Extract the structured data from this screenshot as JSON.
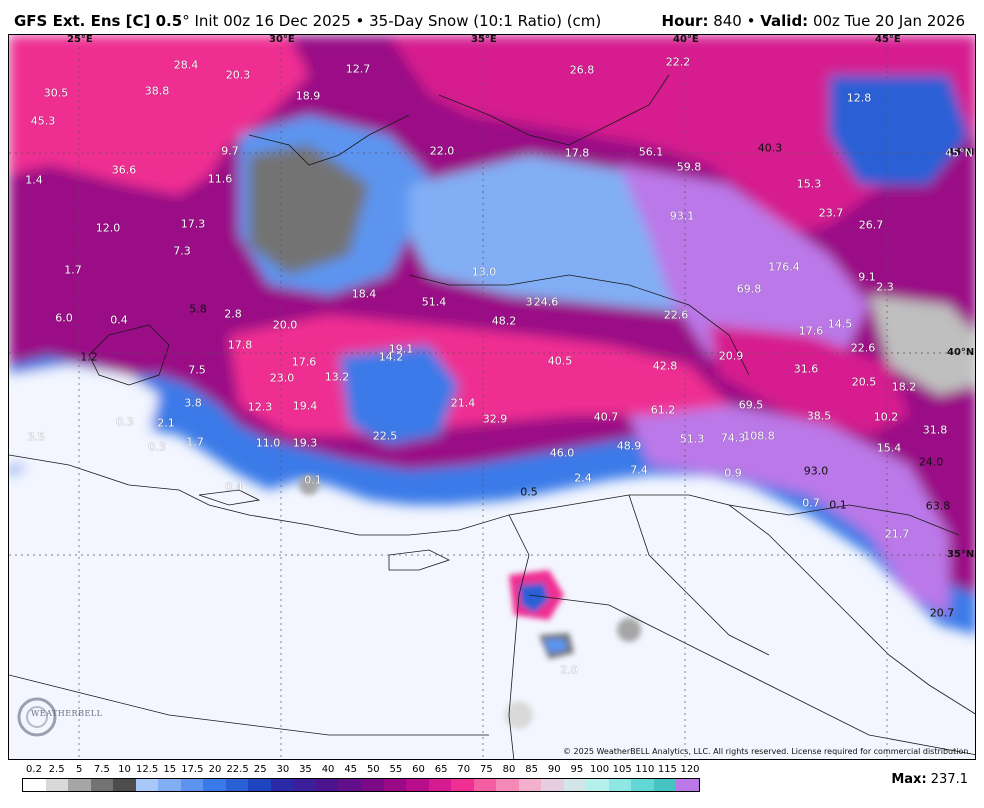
{
  "header": {
    "model": "GFS Ext.  Ens [C] 0.5",
    "degree": "°",
    "description": " Init 00z 16 Dec 2025 • 35-Day Snow (10:1 Ratio) (cm)",
    "hour_label": "Hour:",
    "hour_value": " 840 • ",
    "valid_label": "Valid:",
    "valid_value": " 00z Tue 20 Jan 2026"
  },
  "map": {
    "longitude_labels": [
      "25°E",
      "30°E",
      "35°E",
      "40°E",
      "45°E"
    ],
    "latitude_labels": [
      "45°N",
      "40°N",
      "35°N"
    ],
    "snow_values": [
      "28.4",
      "20.3",
      "38.8",
      "30.5",
      "45.3",
      "12.7",
      "18.9",
      "26.8",
      "22.2",
      "12.8",
      "9.7",
      "11.6",
      "36.6",
      "1.4",
      "22.0",
      "17.8",
      "56.1",
      "59.8",
      "40.3",
      "15.3",
      "45°N",
      "12.0",
      "17.3",
      "7.3",
      "93.1",
      "23.7",
      "26.7",
      "1.7",
      "13.0",
      "176.4",
      "9.1",
      "2.3",
      "6.0",
      "0.4",
      "18.4",
      "51.4",
      "3",
      "24.6",
      "69.8",
      "5.8",
      "2.8",
      "20.0",
      "48.2",
      "22.6",
      "17.6",
      "14.5",
      "17.8",
      "19.1",
      "14.2",
      "22.6",
      "1.2",
      "17.6",
      "23.0",
      "13.2",
      "40.5",
      "42.8",
      "20.9",
      "31.6",
      "20.5",
      "18.2",
      "7.5",
      "3.8",
      "12.3",
      "19.4",
      "21.4",
      "32.9",
      "40.7",
      "61.2",
      "69.5",
      "38.5",
      "10.2",
      "31.8",
      "0.3",
      "2.1",
      "1.7",
      "11.0",
      "19.3",
      "22.5",
      "48.9",
      "51.3",
      "74.3",
      "108.8",
      "15.4",
      "24.0",
      "3.5",
      "0.3",
      "46.0",
      "7.4",
      "93.0",
      "0.1",
      "2.4",
      "0.9",
      "0.4",
      "0.5",
      "0.7",
      "0.1",
      "63.8",
      "21.7",
      "20.7",
      "2.0"
    ],
    "copyright": "© 2025 WeatherBELL Analytics, LLC. All rights reserved. License required for commercial distribution.",
    "logo_text": "WEATHERBELL"
  },
  "legend": {
    "ticks": [
      "0.2",
      "2.5",
      "5",
      "7.5",
      "10",
      "12.5",
      "15",
      "17.5",
      "20",
      "22.5",
      "25",
      "30",
      "35",
      "40",
      "45",
      "50",
      "55",
      "60",
      "65",
      "70",
      "75",
      "80",
      "85",
      "90",
      "95",
      "100",
      "105",
      "110",
      "115",
      "120"
    ],
    "colors": [
      "#ffffff",
      "#d9d9d9",
      "#a6a6a6",
      "#737373",
      "#4d4d4d",
      "#a8c8f8",
      "#82aef5",
      "#5c94f0",
      "#3a7ae8",
      "#2a5fd6",
      "#1f44c0",
      "#2a2aa8",
      "#3b1e9a",
      "#4b148e",
      "#620f8a",
      "#7c0a86",
      "#9a0a86",
      "#b80e8c",
      "#d61a8f",
      "#ef2f92",
      "#f45ea3",
      "#f58ab9",
      "#f2b0cd",
      "#e6cde0",
      "#d2e6ea",
      "#b6f0ec",
      "#8ee7e2",
      "#63d7d6",
      "#46c4c4",
      "#bb78e8"
    ],
    "max_label": "Max:",
    "max_value": " 237.1"
  }
}
